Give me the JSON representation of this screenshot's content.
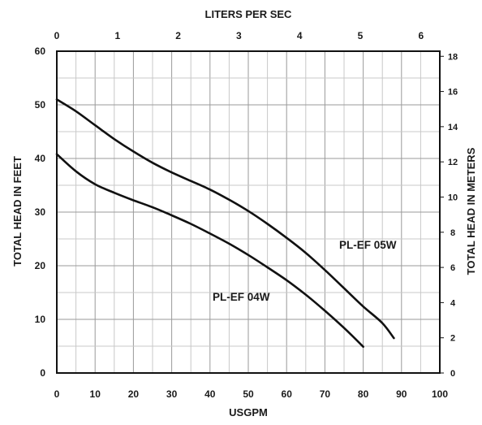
{
  "chart_data": {
    "type": "line",
    "title": "",
    "xlabel": "USGPM",
    "ylabel": "TOTAL HEAD IN FEET",
    "x2label": "LITERS PER SEC",
    "y2label": "TOTAL HEAD IN METERS",
    "xlim": [
      0,
      100
    ],
    "ylim": [
      0,
      60
    ],
    "x2lim": [
      0,
      6.31
    ],
    "y2lim": [
      0,
      18.29
    ],
    "xticks": [
      "0",
      "10",
      "20",
      "30",
      "40",
      "50",
      "60",
      "70",
      "80",
      "90",
      "100"
    ],
    "yticks": [
      "0",
      "10",
      "20",
      "30",
      "40",
      "50",
      "60"
    ],
    "x2ticks": [
      "0",
      "1",
      "2",
      "3",
      "4",
      "5",
      "6"
    ],
    "y2ticks": [
      "0",
      "2",
      "4",
      "6",
      "8",
      "10",
      "12",
      "14",
      "16",
      "18"
    ],
    "grid": true,
    "series": [
      {
        "name": "PL-EF 05W",
        "color": "#111111",
        "x": [
          0,
          5,
          10,
          15,
          20,
          25,
          30,
          35,
          40,
          45,
          50,
          55,
          60,
          65,
          70,
          75,
          80,
          85,
          88
        ],
        "y": [
          51,
          48.8,
          46.2,
          43.6,
          41.3,
          39.2,
          37.4,
          35.8,
          34.2,
          32.3,
          30.2,
          27.8,
          25.2,
          22.4,
          19.2,
          15.8,
          12.4,
          9.3,
          6.5
        ]
      },
      {
        "name": "PL-EF 04W",
        "color": "#111111",
        "x": [
          0,
          5,
          10,
          15,
          20,
          25,
          30,
          35,
          40,
          45,
          50,
          55,
          60,
          65,
          70,
          75,
          80
        ],
        "y": [
          40.8,
          37.6,
          35.2,
          33.6,
          32.2,
          30.9,
          29.4,
          27.8,
          26.0,
          24.1,
          22.0,
          19.7,
          17.3,
          14.6,
          11.6,
          8.4,
          4.9
        ]
      }
    ]
  }
}
